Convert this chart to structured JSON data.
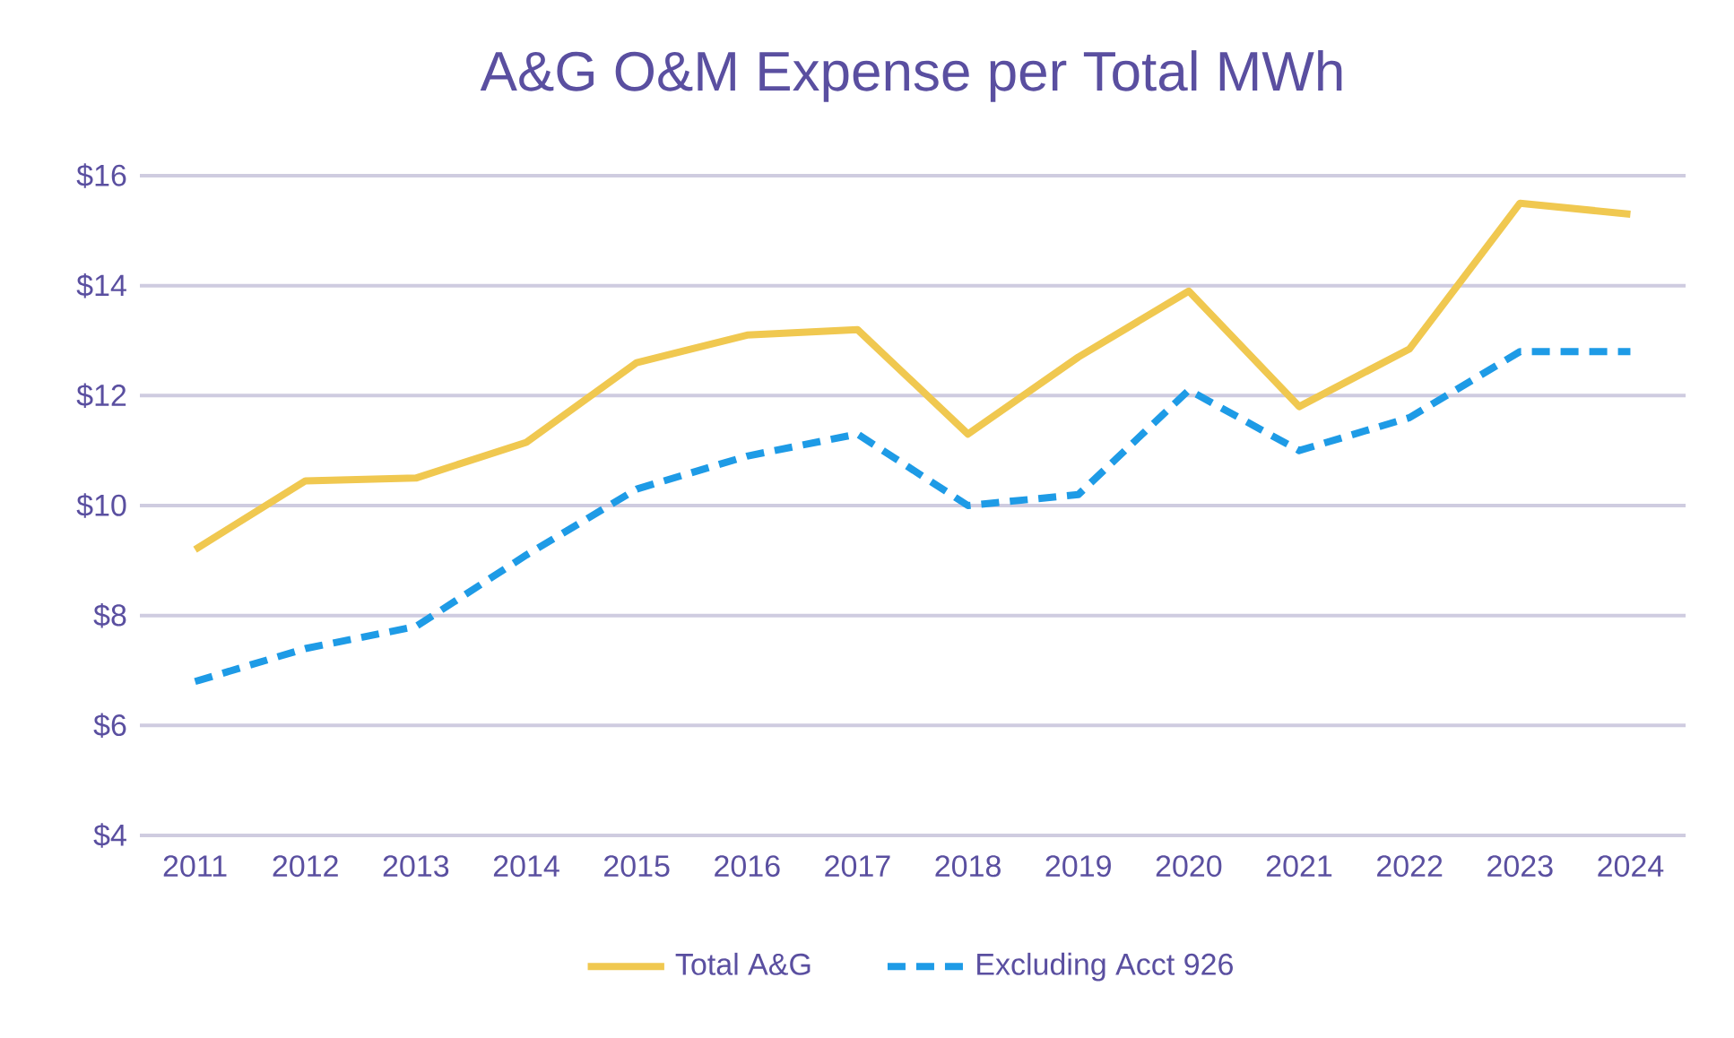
{
  "chart_data": {
    "type": "line",
    "title": "A&G O&M Expense per Total MWh",
    "categories": [
      "2011",
      "2012",
      "2013",
      "2014",
      "2015",
      "2016",
      "2017",
      "2018",
      "2019",
      "2020",
      "2021",
      "2022",
      "2023",
      "2024"
    ],
    "series": [
      {
        "name": "Total A&G",
        "color": "#f0c850",
        "line_style": "solid",
        "values": [
          9.2,
          10.45,
          10.5,
          11.15,
          12.6,
          13.1,
          13.2,
          11.3,
          12.7,
          13.9,
          11.8,
          12.85,
          15.5,
          15.3
        ]
      },
      {
        "name": "Excluding Acct 926",
        "color": "#1e9be6",
        "line_style": "dashed",
        "values": [
          6.8,
          7.4,
          7.8,
          9.1,
          10.3,
          10.9,
          11.3,
          10.0,
          10.2,
          12.1,
          11.0,
          11.6,
          12.8,
          12.8
        ]
      }
    ],
    "ylim": [
      4,
      16
    ],
    "yticks": [
      {
        "value": 4,
        "label": "$4"
      },
      {
        "value": 6,
        "label": "$6"
      },
      {
        "value": 8,
        "label": "$8"
      },
      {
        "value": 10,
        "label": "$10"
      },
      {
        "value": 12,
        "label": "$12"
      },
      {
        "value": 14,
        "label": "$14"
      },
      {
        "value": 16,
        "label": "$16"
      }
    ],
    "grid": "y",
    "legend": "bottom",
    "marker": "none"
  }
}
